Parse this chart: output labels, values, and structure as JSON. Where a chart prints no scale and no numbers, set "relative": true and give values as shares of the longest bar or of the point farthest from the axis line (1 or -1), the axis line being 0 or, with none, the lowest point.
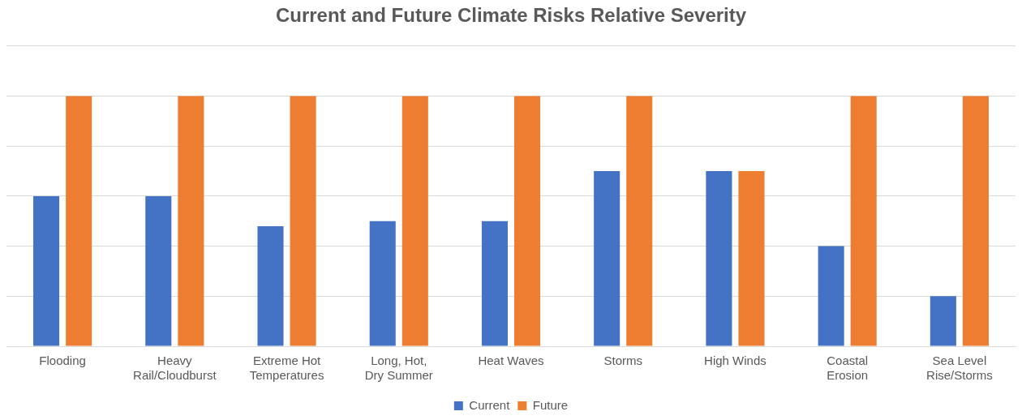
{
  "chart_data": {
    "type": "bar",
    "title": "Current and Future Climate Risks Relative Severity",
    "categories": [
      "Flooding",
      "Heavy Rail/Cloudburst",
      "Extreme Hot Temperatures",
      "Long, Hot, Dry Summer",
      "Heat Waves",
      "Storms",
      "High Winds",
      "Coastal Erosion",
      "Sea Level Rise/Storms"
    ],
    "series": [
      {
        "name": "Current",
        "color": "#4472c4",
        "values": [
          0.6,
          0.6,
          0.48,
          0.5,
          0.5,
          0.7,
          0.7,
          0.4,
          0.2
        ]
      },
      {
        "name": "Future",
        "color": "#ed7d31",
        "values": [
          1,
          1,
          1,
          1,
          1,
          1,
          0.7,
          1,
          1
        ]
      }
    ],
    "relative": true,
    "grid": "y",
    "legend": "bottom"
  }
}
